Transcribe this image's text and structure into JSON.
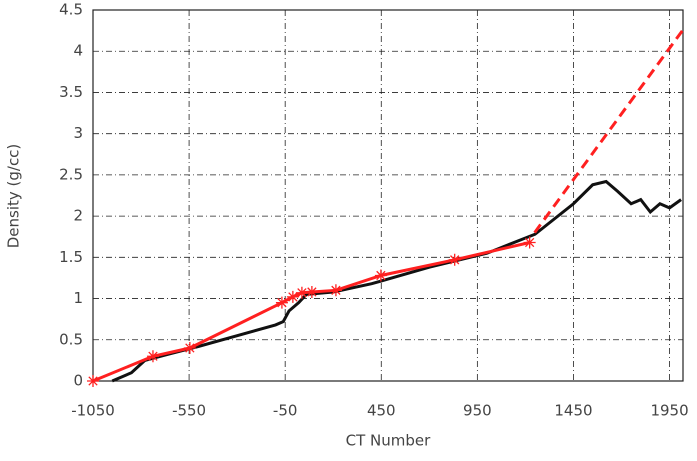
{
  "chart_data": {
    "type": "line",
    "x_label": "CT Number",
    "y_label": "Density (g/cc)",
    "xlim": [
      -1050,
      2020
    ],
    "ylim": [
      0,
      4.5
    ],
    "xticks": [
      -1050,
      -550,
      -50,
      450,
      950,
      1450,
      1950
    ],
    "yticks": [
      0,
      0.5,
      1,
      1.5,
      2,
      2.5,
      3,
      3.5,
      4,
      4.5
    ],
    "grid": true,
    "series": [
      {
        "color": "#111111",
        "style": "solid",
        "marker": "none",
        "x": [
          -950,
          -850,
          -780,
          -650,
          -500,
          -300,
          -100,
          -60,
          -30,
          20,
          60,
          200,
          400,
          700,
          1000,
          1250,
          1450,
          1550,
          1620,
          1680,
          1750,
          1800,
          1850,
          1900,
          1950,
          2010
        ],
        "values": [
          0,
          0.1,
          0.25,
          0.33,
          0.42,
          0.55,
          0.68,
          0.72,
          0.85,
          0.95,
          1.05,
          1.08,
          1.18,
          1.38,
          1.55,
          1.78,
          2.15,
          2.38,
          2.42,
          2.3,
          2.15,
          2.2,
          2.05,
          2.15,
          2.1,
          2.2
        ]
      },
      {
        "color": "#ff2020",
        "style": "solid",
        "marker": "star",
        "x": [
          -1050,
          -738,
          -546,
          -67,
          -10,
          37,
          89,
          214,
          448,
          832,
          1222
        ],
        "values": [
          0,
          0.3,
          0.4,
          0.95,
          1.02,
          1.07,
          1.08,
          1.1,
          1.28,
          1.47,
          1.68
        ]
      },
      {
        "color": "#ff2020",
        "style": "dashed",
        "marker": "none",
        "x": [
          1248,
          2020
        ],
        "values": [
          1.8,
          4.26
        ]
      }
    ]
  }
}
